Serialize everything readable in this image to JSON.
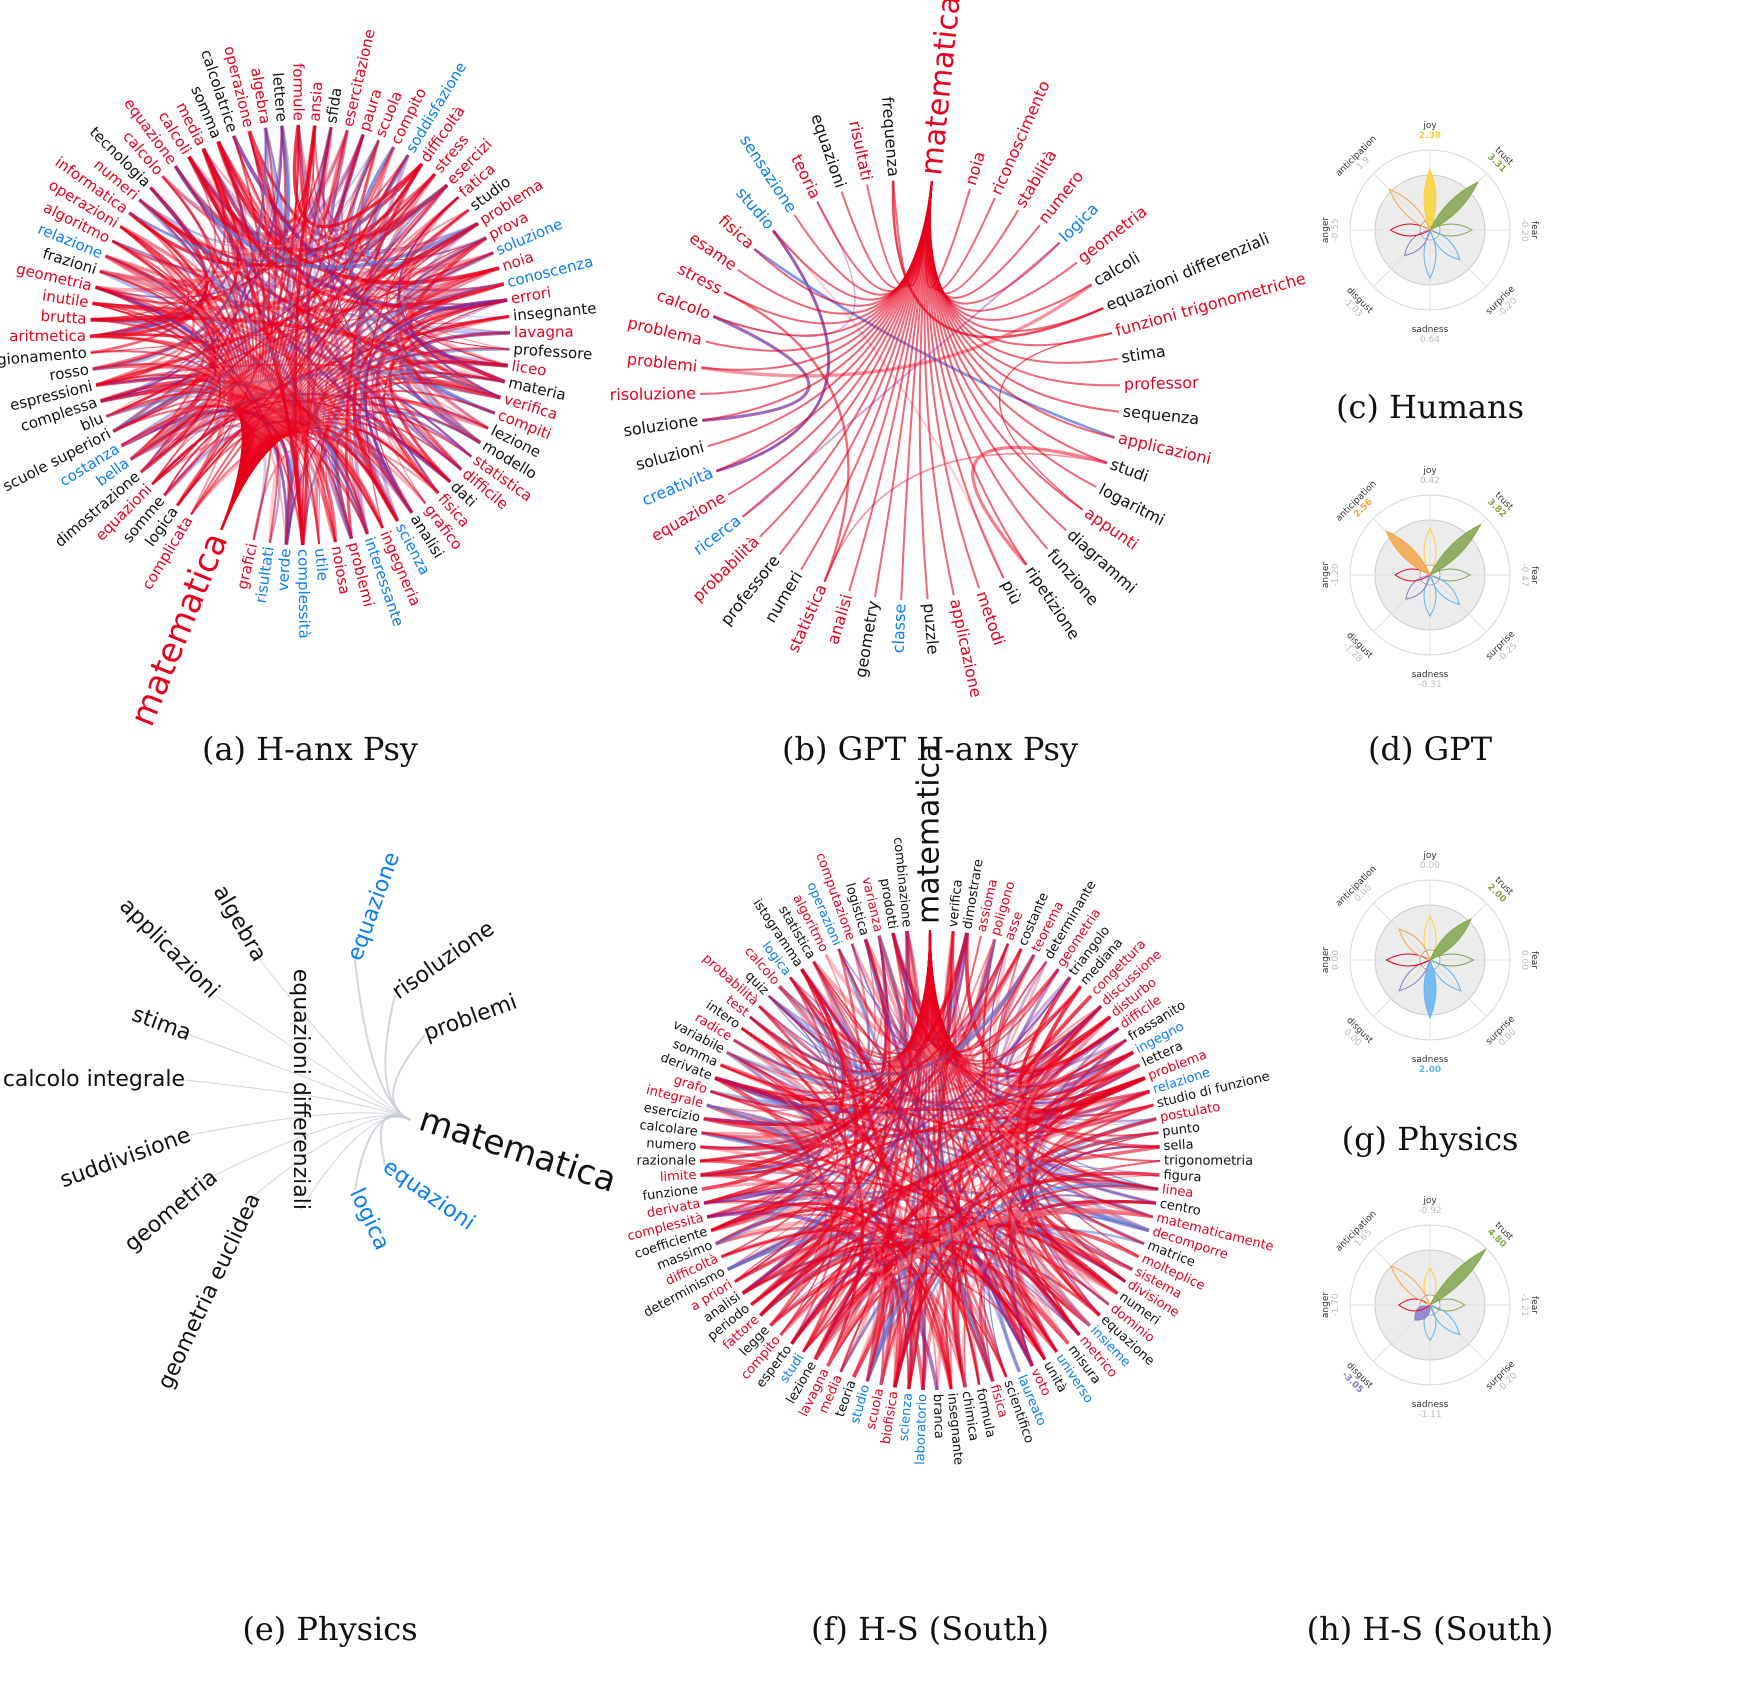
{
  "colors": {
    "positive": "#0a7ef0",
    "negative": "#e8001c",
    "neutral": "#111111",
    "mixed": "#7a2aa0",
    "joy": "#f8d23a",
    "trust": "#82a64e",
    "anticipation": "#f5a44a",
    "sadness": "#63b3f0",
    "disgust": "#8a7ccc",
    "grid": "#ececec"
  },
  "panels": {
    "a": {
      "caption": "(a) H-anx Psy",
      "center": "matematica",
      "words": [
        {
          "t": "complicata",
          "c": "negative"
        },
        {
          "t": "logica",
          "c": "neutral"
        },
        {
          "t": "somme",
          "c": "neutral"
        },
        {
          "t": "equazioni",
          "c": "negative"
        },
        {
          "t": "dimostrazione",
          "c": "neutral"
        },
        {
          "t": "bella",
          "c": "positive"
        },
        {
          "t": "costanza",
          "c": "positive"
        },
        {
          "t": "scuole superiori",
          "c": "neutral"
        },
        {
          "t": "blu",
          "c": "neutral"
        },
        {
          "t": "complessa",
          "c": "neutral"
        },
        {
          "t": "espressioni",
          "c": "neutral"
        },
        {
          "t": "rosso",
          "c": "neutral"
        },
        {
          "t": "ragionamento",
          "c": "neutral"
        },
        {
          "t": "aritmetica",
          "c": "negative"
        },
        {
          "t": "brutta",
          "c": "negative"
        },
        {
          "t": "inutile",
          "c": "negative"
        },
        {
          "t": "geometria",
          "c": "negative"
        },
        {
          "t": "frazioni",
          "c": "neutral"
        },
        {
          "t": "relazione",
          "c": "positive"
        },
        {
          "t": "algoritmo",
          "c": "negative"
        },
        {
          "t": "operazioni",
          "c": "negative"
        },
        {
          "t": "informatica",
          "c": "negative"
        },
        {
          "t": "numeri",
          "c": "negative"
        },
        {
          "t": "tecnologia",
          "c": "neutral"
        },
        {
          "t": "calcolo",
          "c": "negative"
        },
        {
          "t": "equazione",
          "c": "negative"
        },
        {
          "t": "calcoli",
          "c": "negative"
        },
        {
          "t": "media",
          "c": "negative"
        },
        {
          "t": "somma",
          "c": "neutral"
        },
        {
          "t": "calcolatrice",
          "c": "neutral"
        },
        {
          "t": "operazione",
          "c": "negative"
        },
        {
          "t": "algebra",
          "c": "negative"
        },
        {
          "t": "lettere",
          "c": "neutral"
        },
        {
          "t": "formule",
          "c": "negative"
        },
        {
          "t": "ansia",
          "c": "negative"
        },
        {
          "t": "sfida",
          "c": "neutral"
        },
        {
          "t": "esercitazione",
          "c": "negative"
        },
        {
          "t": "paura",
          "c": "negative"
        },
        {
          "t": "scuola",
          "c": "negative"
        },
        {
          "t": "compito",
          "c": "negative"
        },
        {
          "t": "soddisfazione",
          "c": "positive"
        },
        {
          "t": "difficoltà",
          "c": "negative"
        },
        {
          "t": "stress",
          "c": "negative"
        },
        {
          "t": "esercizi",
          "c": "negative"
        },
        {
          "t": "fatica",
          "c": "negative"
        },
        {
          "t": "studio",
          "c": "neutral"
        },
        {
          "t": "problema",
          "c": "negative"
        },
        {
          "t": "prova",
          "c": "negative"
        },
        {
          "t": "soluzione",
          "c": "positive"
        },
        {
          "t": "noia",
          "c": "negative"
        },
        {
          "t": "conoscenza",
          "c": "positive"
        },
        {
          "t": "errori",
          "c": "negative"
        },
        {
          "t": "insegnante",
          "c": "neutral"
        },
        {
          "t": "lavagna",
          "c": "negative"
        },
        {
          "t": "professore",
          "c": "neutral"
        },
        {
          "t": "liceo",
          "c": "negative"
        },
        {
          "t": "materia",
          "c": "neutral"
        },
        {
          "t": "verifica",
          "c": "negative"
        },
        {
          "t": "compiti",
          "c": "negative"
        },
        {
          "t": "lezione",
          "c": "neutral"
        },
        {
          "t": "modello",
          "c": "neutral"
        },
        {
          "t": "statistica",
          "c": "negative"
        },
        {
          "t": "difficile",
          "c": "negative"
        },
        {
          "t": "dati",
          "c": "neutral"
        },
        {
          "t": "fisica",
          "c": "negative"
        },
        {
          "t": "grafico",
          "c": "negative"
        },
        {
          "t": "analisi",
          "c": "neutral"
        },
        {
          "t": "scienza",
          "c": "positive"
        },
        {
          "t": "ingegneria",
          "c": "negative"
        },
        {
          "t": "interessante",
          "c": "positive"
        },
        {
          "t": "problemi",
          "c": "negative"
        },
        {
          "t": "noiosa",
          "c": "negative"
        },
        {
          "t": "utile",
          "c": "positive"
        },
        {
          "t": "complessità",
          "c": "positive"
        },
        {
          "t": "verde",
          "c": "positive"
        },
        {
          "t": "risultati",
          "c": "positive"
        },
        {
          "t": "grafici",
          "c": "negative"
        }
      ]
    },
    "b": {
      "caption": "(b) GPT H-anx Psy",
      "center": "matematica",
      "words": [
        {
          "t": "noia",
          "c": "negative"
        },
        {
          "t": "riconoscimento",
          "c": "negative"
        },
        {
          "t": "stabilità",
          "c": "negative"
        },
        {
          "t": "numero",
          "c": "negative"
        },
        {
          "t": "logica",
          "c": "positive"
        },
        {
          "t": "geometria",
          "c": "negative"
        },
        {
          "t": "calcoli",
          "c": "neutral"
        },
        {
          "t": "equazioni differenziali",
          "c": "neutral"
        },
        {
          "t": "funzioni trigonometriche",
          "c": "negative"
        },
        {
          "t": "stima",
          "c": "neutral"
        },
        {
          "t": "professor",
          "c": "negative"
        },
        {
          "t": "sequenza",
          "c": "neutral"
        },
        {
          "t": "applicazioni",
          "c": "negative"
        },
        {
          "t": "studi",
          "c": "neutral"
        },
        {
          "t": "logaritmi",
          "c": "neutral"
        },
        {
          "t": "appunti",
          "c": "negative"
        },
        {
          "t": "diagrammi",
          "c": "neutral"
        },
        {
          "t": "funzione",
          "c": "neutral"
        },
        {
          "t": "ripetizione",
          "c": "neutral"
        },
        {
          "t": "più",
          "c": "neutral"
        },
        {
          "t": "metodi",
          "c": "negative"
        },
        {
          "t": "applicazione",
          "c": "negative"
        },
        {
          "t": "puzzle",
          "c": "neutral"
        },
        {
          "t": "classe",
          "c": "positive"
        },
        {
          "t": "geometry",
          "c": "neutral"
        },
        {
          "t": "analisi",
          "c": "negative"
        },
        {
          "t": "statistica",
          "c": "negative"
        },
        {
          "t": "numeri",
          "c": "neutral"
        },
        {
          "t": "professore",
          "c": "neutral"
        },
        {
          "t": "probabilità",
          "c": "negative"
        },
        {
          "t": "ricerca",
          "c": "positive"
        },
        {
          "t": "equazione",
          "c": "negative"
        },
        {
          "t": "creatività",
          "c": "positive"
        },
        {
          "t": "soluzioni",
          "c": "neutral"
        },
        {
          "t": "soluzione",
          "c": "neutral"
        },
        {
          "t": "risoluzione",
          "c": "negative"
        },
        {
          "t": "problemi",
          "c": "negative"
        },
        {
          "t": "problema",
          "c": "negative"
        },
        {
          "t": "calcolo",
          "c": "negative"
        },
        {
          "t": "stress",
          "c": "negative"
        },
        {
          "t": "esame",
          "c": "negative"
        },
        {
          "t": "fisica",
          "c": "negative"
        },
        {
          "t": "studio",
          "c": "positive"
        },
        {
          "t": "sensazione",
          "c": "positive"
        },
        {
          "t": "teoria",
          "c": "negative"
        },
        {
          "t": "equazioni",
          "c": "neutral"
        },
        {
          "t": "risultati",
          "c": "negative"
        },
        {
          "t": "frequenza",
          "c": "neutral"
        }
      ]
    },
    "e": {
      "caption": "(e) Physics",
      "center": "matematica",
      "words": [
        {
          "t": "equazione",
          "c": "positive"
        },
        {
          "t": "risoluzione",
          "c": "neutral"
        },
        {
          "t": "problemi",
          "c": "neutral"
        },
        {
          "t": "algebra",
          "c": "neutral"
        },
        {
          "t": "applicazioni",
          "c": "neutral"
        },
        {
          "t": "stima",
          "c": "neutral"
        },
        {
          "t": "calcolo integrale",
          "c": "neutral"
        },
        {
          "t": "suddivisione",
          "c": "neutral"
        },
        {
          "t": "geometria",
          "c": "neutral"
        },
        {
          "t": "geometria euclidea",
          "c": "neutral"
        },
        {
          "t": "equazioni differenziali",
          "c": "neutral"
        },
        {
          "t": "logica",
          "c": "positive"
        },
        {
          "t": "equazioni",
          "c": "positive"
        }
      ]
    },
    "f": {
      "caption": "(f) H-S (South)",
      "center": "matematica",
      "words": [
        {
          "t": "verifica",
          "c": "neutral"
        },
        {
          "t": "dimostrare",
          "c": "neutral"
        },
        {
          "t": "assioma",
          "c": "negative"
        },
        {
          "t": "poligono",
          "c": "negative"
        },
        {
          "t": "asse",
          "c": "negative"
        },
        {
          "t": "costante",
          "c": "neutral"
        },
        {
          "t": "teorema",
          "c": "negative"
        },
        {
          "t": "determinante",
          "c": "neutral"
        },
        {
          "t": "geometria",
          "c": "negative"
        },
        {
          "t": "triangolo",
          "c": "neutral"
        },
        {
          "t": "mediana",
          "c": "neutral"
        },
        {
          "t": "congettura",
          "c": "negative"
        },
        {
          "t": "discussione",
          "c": "negative"
        },
        {
          "t": "disturbo",
          "c": "negative"
        },
        {
          "t": "difficile",
          "c": "negative"
        },
        {
          "t": "frassanito",
          "c": "neutral"
        },
        {
          "t": "ingegno",
          "c": "positive"
        },
        {
          "t": "lettera",
          "c": "neutral"
        },
        {
          "t": "problema",
          "c": "negative"
        },
        {
          "t": "relazione",
          "c": "positive"
        },
        {
          "t": "studio di funzione",
          "c": "neutral"
        },
        {
          "t": "postulato",
          "c": "negative"
        },
        {
          "t": "punto",
          "c": "neutral"
        },
        {
          "t": "sella",
          "c": "neutral"
        },
        {
          "t": "trigonometria",
          "c": "neutral"
        },
        {
          "t": "figura",
          "c": "neutral"
        },
        {
          "t": "linea",
          "c": "negative"
        },
        {
          "t": "centro",
          "c": "neutral"
        },
        {
          "t": "matematicamente",
          "c": "negative"
        },
        {
          "t": "decomporre",
          "c": "negative"
        },
        {
          "t": "matrice",
          "c": "neutral"
        },
        {
          "t": "molteplice",
          "c": "negative"
        },
        {
          "t": "sistema",
          "c": "negative"
        },
        {
          "t": "divisione",
          "c": "negative"
        },
        {
          "t": "numeri",
          "c": "neutral"
        },
        {
          "t": "dominio",
          "c": "negative"
        },
        {
          "t": "equazione",
          "c": "neutral"
        },
        {
          "t": "insieme",
          "c": "positive"
        },
        {
          "t": "metrico",
          "c": "negative"
        },
        {
          "t": "misura",
          "c": "neutral"
        },
        {
          "t": "universo",
          "c": "positive"
        },
        {
          "t": "unità",
          "c": "neutral"
        },
        {
          "t": "voto",
          "c": "negative"
        },
        {
          "t": "laureato",
          "c": "positive"
        },
        {
          "t": "scientifico",
          "c": "neutral"
        },
        {
          "t": "fisica",
          "c": "negative"
        },
        {
          "t": "formula",
          "c": "neutral"
        },
        {
          "t": "chimica",
          "c": "neutral"
        },
        {
          "t": "insegnante",
          "c": "neutral"
        },
        {
          "t": "branca",
          "c": "neutral"
        },
        {
          "t": "laboratorio",
          "c": "positive"
        },
        {
          "t": "scienza",
          "c": "positive"
        },
        {
          "t": "biofisica",
          "c": "negative"
        },
        {
          "t": "scuola",
          "c": "negative"
        },
        {
          "t": "studio",
          "c": "positive"
        },
        {
          "t": "teoria",
          "c": "neutral"
        },
        {
          "t": "media",
          "c": "negative"
        },
        {
          "t": "lavagna",
          "c": "negative"
        },
        {
          "t": "lezione",
          "c": "neutral"
        },
        {
          "t": "studi",
          "c": "positive"
        },
        {
          "t": "esperto",
          "c": "neutral"
        },
        {
          "t": "compito",
          "c": "negative"
        },
        {
          "t": "legge",
          "c": "neutral"
        },
        {
          "t": "fattore",
          "c": "negative"
        },
        {
          "t": "periodo",
          "c": "neutral"
        },
        {
          "t": "analisi",
          "c": "neutral"
        },
        {
          "t": "a priori",
          "c": "negative"
        },
        {
          "t": "determinismo",
          "c": "neutral"
        },
        {
          "t": "difficoltà",
          "c": "negative"
        },
        {
          "t": "massimo",
          "c": "neutral"
        },
        {
          "t": "coefficiente",
          "c": "neutral"
        },
        {
          "t": "complessità",
          "c": "negative"
        },
        {
          "t": "derivata",
          "c": "negative"
        },
        {
          "t": "funzione",
          "c": "neutral"
        },
        {
          "t": "limite",
          "c": "negative"
        },
        {
          "t": "razionale",
          "c": "neutral"
        },
        {
          "t": "numero",
          "c": "neutral"
        },
        {
          "t": "calcolare",
          "c": "neutral"
        },
        {
          "t": "esercizio",
          "c": "neutral"
        },
        {
          "t": "integrale",
          "c": "negative"
        },
        {
          "t": "grafo",
          "c": "negative"
        },
        {
          "t": "derivate",
          "c": "neutral"
        },
        {
          "t": "somma",
          "c": "neutral"
        },
        {
          "t": "variabile",
          "c": "neutral"
        },
        {
          "t": "radice",
          "c": "negative"
        },
        {
          "t": "intero",
          "c": "neutral"
        },
        {
          "t": "test",
          "c": "negative"
        },
        {
          "t": "probabilità",
          "c": "negative"
        },
        {
          "t": "quiz",
          "c": "neutral"
        },
        {
          "t": "calcolo",
          "c": "negative"
        },
        {
          "t": "logica",
          "c": "positive"
        },
        {
          "t": "istogramma",
          "c": "neutral"
        },
        {
          "t": "statistica",
          "c": "neutral"
        },
        {
          "t": "algoritmo",
          "c": "negative"
        },
        {
          "t": "operazioni",
          "c": "positive"
        },
        {
          "t": "computazione",
          "c": "negative"
        },
        {
          "t": "logistica",
          "c": "neutral"
        },
        {
          "t": "varianza",
          "c": "negative"
        },
        {
          "t": "prodotti",
          "c": "neutral"
        },
        {
          "t": "combinazione",
          "c": "neutral"
        }
      ]
    }
  },
  "flowers": [
    {
      "key": "c",
      "caption": "(c) Humans",
      "joy": "2.38",
      "trust": "3.31",
      "fear": "-0.20",
      "surprise": "-0.20",
      "sadness": "0.64",
      "disgust": "-1.03",
      "anger": "-0.55",
      "anticipation": "1.9"
    },
    {
      "key": "d",
      "caption": "(d) GPT",
      "joy": "0.42",
      "trust": "3.82",
      "fear": "-0.47",
      "surprise": "-0.25",
      "sadness": "-0.31",
      "disgust": "-1.28",
      "anger": "-1.20",
      "anticipation": "2.56"
    },
    {
      "key": "g",
      "caption": "(g) Physics",
      "joy": "0.00",
      "trust": "2.00",
      "fear": "0.00",
      "surprise": "0.00",
      "sadness": "2.00",
      "disgust": "0.00",
      "anger": "0.00",
      "anticipation": "0.00"
    },
    {
      "key": "h",
      "caption": "(h) H-S (South)",
      "joy": "-0.92",
      "trust": "4.80",
      "fear": "-1.21",
      "surprise": "-0.20",
      "sadness": "-1.11",
      "disgust": "-3.05",
      "anger": "-1.70",
      "anticipation": "1.65"
    }
  ],
  "emotion_labels": {
    "joy": "joy",
    "trust": "trust",
    "fear": "fear",
    "surprise": "surprise",
    "sadness": "sadness",
    "disgust": "disgust",
    "anger": "anger",
    "anticipation": "anticipation"
  }
}
